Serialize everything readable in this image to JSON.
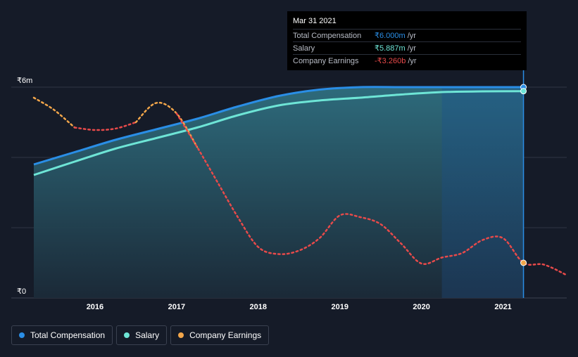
{
  "chart_data": {
    "type": "area",
    "title": "",
    "xlabel": "",
    "ylabel": "",
    "currency_unit": "₹ millions",
    "xlim": [
      2015.25,
      2021.78
    ],
    "ylim": [
      0,
      6
    ],
    "y_ticks": [
      {
        "value": 6,
        "label": "₹6m"
      },
      {
        "value": 4,
        "label": ""
      },
      {
        "value": 2,
        "label": ""
      },
      {
        "value": 0,
        "label": "₹0"
      }
    ],
    "x_ticks": [
      {
        "value": 2016,
        "label": "2016"
      },
      {
        "value": 2017,
        "label": "2017"
      },
      {
        "value": 2018,
        "label": "2018"
      },
      {
        "value": 2019,
        "label": "2019"
      },
      {
        "value": 2020,
        "label": "2020"
      },
      {
        "value": 2021,
        "label": "2021"
      }
    ],
    "highlight_range": [
      2020.25,
      2021.25
    ],
    "series": [
      {
        "name": "Total Compensation",
        "color": "#2a8ee6",
        "style": "area",
        "points": [
          [
            2015.25,
            3.8
          ],
          [
            2015.75,
            4.15
          ],
          [
            2016.25,
            4.5
          ],
          [
            2016.75,
            4.8
          ],
          [
            2017.25,
            5.1
          ],
          [
            2017.75,
            5.45
          ],
          [
            2018.25,
            5.75
          ],
          [
            2018.75,
            5.93
          ],
          [
            2019.25,
            6.0
          ],
          [
            2019.75,
            6.0
          ],
          [
            2020.25,
            6.0
          ],
          [
            2020.75,
            6.0
          ],
          [
            2021.25,
            6.0
          ]
        ]
      },
      {
        "name": "Salary",
        "color": "#6ee5d6",
        "style": "area",
        "points": [
          [
            2015.25,
            3.5
          ],
          [
            2015.75,
            3.88
          ],
          [
            2016.25,
            4.25
          ],
          [
            2016.75,
            4.55
          ],
          [
            2017.25,
            4.85
          ],
          [
            2017.75,
            5.2
          ],
          [
            2018.25,
            5.48
          ],
          [
            2018.75,
            5.62
          ],
          [
            2019.25,
            5.7
          ],
          [
            2019.75,
            5.79
          ],
          [
            2020.25,
            5.86
          ],
          [
            2020.75,
            5.88
          ],
          [
            2021.25,
            5.887
          ]
        ]
      },
      {
        "name": "Company Earnings",
        "color": "#e84a4a",
        "positive_color": "#f2a64a",
        "style": "dotted",
        "points": [
          [
            2015.25,
            5.7
          ],
          [
            2015.5,
            5.35
          ],
          [
            2015.75,
            4.85
          ],
          [
            2016.0,
            4.78
          ],
          [
            2016.25,
            4.82
          ],
          [
            2016.5,
            5.0
          ],
          [
            2016.75,
            5.55
          ],
          [
            2017.0,
            5.25
          ],
          [
            2017.25,
            4.3
          ],
          [
            2017.5,
            3.3
          ],
          [
            2017.75,
            2.3
          ],
          [
            2018.0,
            1.45
          ],
          [
            2018.25,
            1.25
          ],
          [
            2018.5,
            1.35
          ],
          [
            2018.75,
            1.7
          ],
          [
            2019.0,
            2.35
          ],
          [
            2019.25,
            2.3
          ],
          [
            2019.5,
            2.1
          ],
          [
            2019.75,
            1.55
          ],
          [
            2020.0,
            0.98
          ],
          [
            2020.25,
            1.15
          ],
          [
            2020.5,
            1.28
          ],
          [
            2020.75,
            1.65
          ],
          [
            2021.0,
            1.7
          ],
          [
            2021.25,
            1.0
          ],
          [
            2021.5,
            0.95
          ],
          [
            2021.78,
            0.65
          ]
        ]
      }
    ]
  },
  "tooltip": {
    "date": "Mar 31 2021",
    "rows": [
      {
        "label": "Total Compensation",
        "value": "₹6.000m",
        "unit": "/yr",
        "color": "#2a8ee6"
      },
      {
        "label": "Salary",
        "value": "₹5.887m",
        "unit": "/yr",
        "color": "#6ee5d6"
      },
      {
        "label": "Company Earnings",
        "value": "-₹3.260b",
        "unit": "/yr",
        "color": "#e84a4a"
      }
    ]
  },
  "legend": [
    {
      "label": "Total Compensation",
      "color": "#2a8ee6"
    },
    {
      "label": "Salary",
      "color": "#6ee5d6"
    },
    {
      "label": "Company Earnings",
      "color": "#f2a64a"
    }
  ]
}
